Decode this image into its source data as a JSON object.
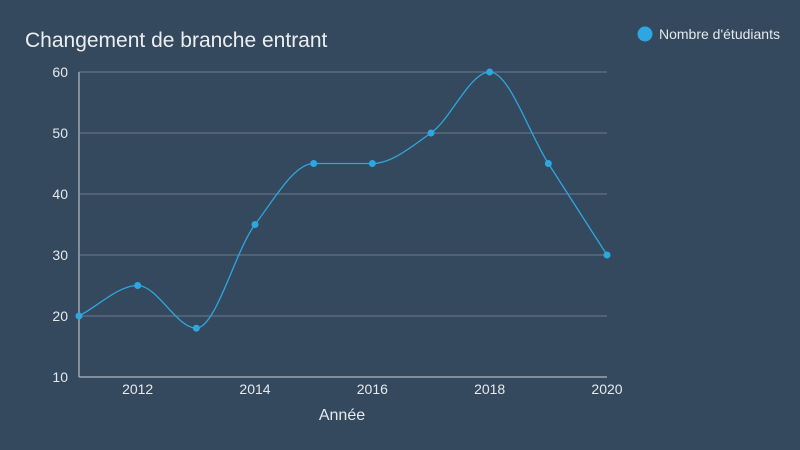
{
  "chart_data": {
    "type": "line",
    "title": "Changement de branche entrant",
    "xlabel": "Année",
    "ylabel": "",
    "xlim": [
      2011,
      2020
    ],
    "ylim": [
      10,
      60
    ],
    "y_ticks": [
      10,
      20,
      30,
      40,
      50,
      60
    ],
    "x_ticks": [
      2012,
      2014,
      2016,
      2018,
      2020
    ],
    "grid": true,
    "legend_position": "top-right",
    "series": [
      {
        "name": "Nombre d'étudiants",
        "color": "#2ea7e0",
        "smooth": true,
        "x": [
          2011,
          2012,
          2013,
          2014,
          2015,
          2016,
          2017,
          2018,
          2019,
          2020
        ],
        "values": [
          20,
          25,
          18,
          35,
          45,
          45,
          50,
          60,
          45,
          30
        ]
      }
    ]
  }
}
